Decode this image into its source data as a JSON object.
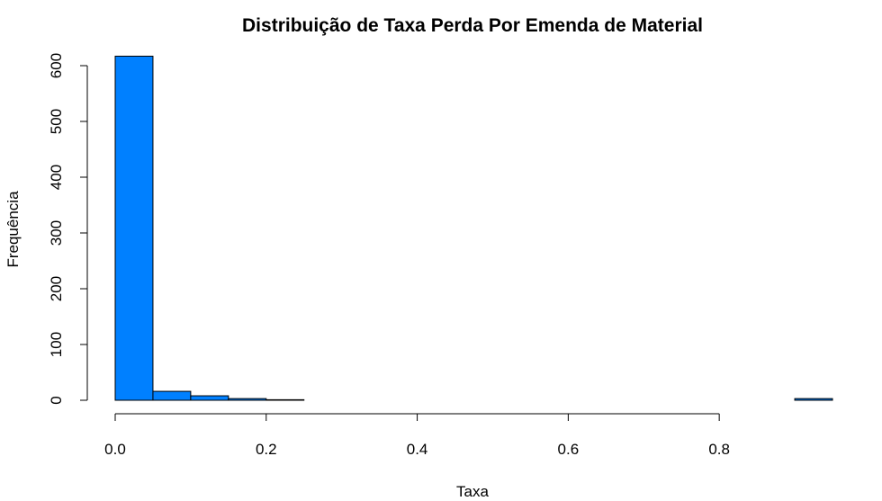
{
  "chart_data": {
    "type": "bar",
    "title": "Distribuição de Taxa Perda Por Emenda de Material",
    "xlabel": "Taxa",
    "ylabel": "Frequência",
    "bar_color": "#0080FF",
    "bin_edges": [
      0.0,
      0.05,
      0.1,
      0.15,
      0.2,
      0.25,
      0.3,
      0.35,
      0.4,
      0.45,
      0.5,
      0.55,
      0.6,
      0.65,
      0.7,
      0.75,
      0.8,
      0.85,
      0.9,
      0.95
    ],
    "values": [
      617,
      16,
      8,
      3,
      1,
      0,
      0,
      0,
      0,
      0,
      0,
      0,
      0,
      0,
      0,
      0,
      0,
      0,
      3
    ],
    "xlim": [
      0.0,
      0.95
    ],
    "ylim": [
      0,
      600
    ],
    "x_ticks": [
      0.0,
      0.2,
      0.4,
      0.6,
      0.8
    ],
    "x_tick_labels": [
      "0.0",
      "0.2",
      "0.4",
      "0.6",
      "0.8"
    ],
    "y_ticks": [
      0,
      100,
      200,
      300,
      400,
      500,
      600
    ],
    "y_tick_labels": [
      "0",
      "100",
      "200",
      "300",
      "400",
      "500",
      "600"
    ],
    "grid": false,
    "legend": "none"
  }
}
